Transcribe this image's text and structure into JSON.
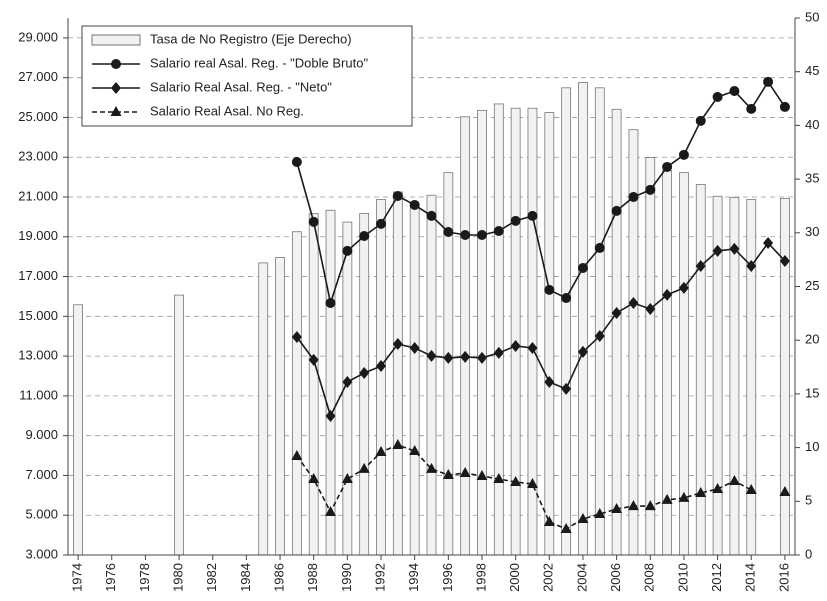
{
  "chart_data": {
    "type": "bar",
    "x": [
      1974,
      1975,
      1976,
      1977,
      1978,
      1979,
      1980,
      1981,
      1982,
      1983,
      1984,
      1985,
      1986,
      1987,
      1988,
      1989,
      1990,
      1991,
      1992,
      1993,
      1994,
      1995,
      1996,
      1997,
      1998,
      1999,
      2000,
      2001,
      2002,
      2003,
      2004,
      2005,
      2006,
      2007,
      2008,
      2009,
      2010,
      2011,
      2012,
      2013,
      2014,
      2015,
      2016
    ],
    "xlim": [
      1973.4,
      2016.6
    ],
    "xticks": [
      1974,
      1976,
      1978,
      1980,
      1982,
      1984,
      1986,
      1988,
      1990,
      1992,
      1994,
      1996,
      1998,
      2000,
      2002,
      2004,
      2006,
      2008,
      2010,
      2012,
      2014,
      2016
    ],
    "ylim": [
      3000,
      30000
    ],
    "yticks": [
      {
        "value": 3000,
        "label": "3.000"
      },
      {
        "value": 5000,
        "label": "5.000"
      },
      {
        "value": 7000,
        "label": "7.000"
      },
      {
        "value": 9000,
        "label": "9.000"
      },
      {
        "value": 11000,
        "label": "11.000"
      },
      {
        "value": 13000,
        "label": "13.000"
      },
      {
        "value": 15000,
        "label": "15.000"
      },
      {
        "value": 17000,
        "label": "17.000"
      },
      {
        "value": 19000,
        "label": "19.000"
      },
      {
        "value": 21000,
        "label": "21.000"
      },
      {
        "value": 23000,
        "label": "23.000"
      },
      {
        "value": 25000,
        "label": "25.000"
      },
      {
        "value": 27000,
        "label": "27.000"
      },
      {
        "value": 29000,
        "label": "29.000"
      }
    ],
    "y2lim": [
      0,
      50
    ],
    "y2ticks": [
      0,
      5,
      10,
      15,
      20,
      25,
      30,
      35,
      40,
      45,
      50
    ],
    "grid": true,
    "legend": "top-left",
    "series": [
      {
        "name": "Tasa de No Registro (Eje Derecho)",
        "type": "bar",
        "axis": "y2",
        "color": "#f2f2f2",
        "values": [
          23.3,
          null,
          null,
          null,
          null,
          null,
          24.2,
          null,
          null,
          null,
          null,
          27.2,
          27.7,
          30.1,
          31.8,
          32.1,
          31.0,
          31.8,
          33.1,
          33.8,
          32.4,
          33.5,
          35.6,
          40.8,
          41.4,
          42.0,
          41.6,
          41.6,
          41.2,
          43.5,
          44.0,
          43.5,
          41.5,
          39.6,
          37.0,
          35.8,
          35.6,
          34.5,
          33.4,
          33.3,
          33.1,
          null,
          33.2
        ]
      },
      {
        "name": "Salario real Asal. Reg. - \"Doble Bruto\"",
        "type": "line",
        "marker": "circle",
        "dashed": false,
        "color": "#1a1a1a",
        "values": [
          null,
          null,
          null,
          null,
          null,
          null,
          null,
          null,
          null,
          null,
          null,
          null,
          null,
          22760,
          19750,
          15670,
          18290,
          19040,
          19650,
          21050,
          20600,
          20050,
          19240,
          19090,
          19090,
          19290,
          19800,
          20050,
          16330,
          15920,
          17430,
          18440,
          20300,
          21000,
          21360,
          22510,
          23120,
          24830,
          26030,
          26330,
          25430,
          26790,
          25530
        ]
      },
      {
        "name": "Salario Real Asal. Reg. - \"Neto\"",
        "type": "line",
        "marker": "diamond",
        "dashed": false,
        "color": "#1a1a1a",
        "values": [
          null,
          null,
          null,
          null,
          null,
          null,
          null,
          null,
          null,
          null,
          null,
          null,
          null,
          13960,
          12810,
          9990,
          11700,
          12150,
          12500,
          13610,
          13410,
          13010,
          12910,
          12960,
          12910,
          13160,
          13510,
          13410,
          11700,
          11350,
          13210,
          14010,
          15170,
          15670,
          15370,
          16080,
          16430,
          17530,
          18290,
          18390,
          17530,
          18690,
          17780
        ]
      },
      {
        "name": "Salario Real Asal. No Reg.",
        "type": "line",
        "marker": "triangle",
        "dashed": true,
        "color": "#1a1a1a",
        "values": [
          null,
          null,
          null,
          null,
          null,
          null,
          null,
          null,
          null,
          null,
          null,
          null,
          null,
          7980,
          6820,
          5160,
          6820,
          7330,
          8180,
          8530,
          8230,
          7330,
          7020,
          7120,
          6970,
          6820,
          6670,
          6570,
          4660,
          4310,
          4810,
          5060,
          5310,
          5460,
          5460,
          5770,
          5870,
          6120,
          6320,
          6720,
          6270,
          null,
          6170
        ]
      }
    ]
  }
}
